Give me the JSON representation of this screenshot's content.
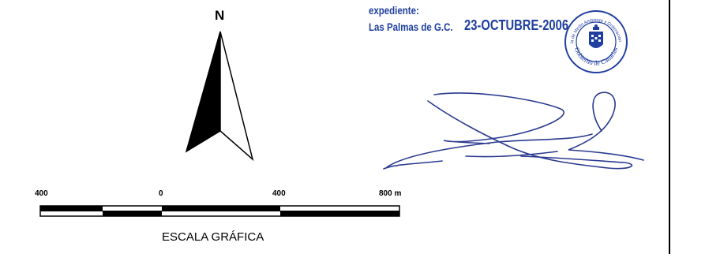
{
  "north": {
    "label": "N"
  },
  "scale": {
    "labels": [
      "400",
      "0",
      "400",
      "800 m"
    ],
    "title": "ESCALA GRÁFICA"
  },
  "stamp": {
    "expediente": "expediente:",
    "place": "Las Palmas de G.C.",
    "date": "23-OCTUBRE-2006",
    "seal_text_top": "Consejería de Medio Ambiente y Ordenación Territorial",
    "seal_text_bottom": "Gobierno de Canarias",
    "ink_color": "#1f3e9f"
  },
  "icons": [
    "north-arrow-icon",
    "coat-of-arms-icon",
    "signature"
  ]
}
